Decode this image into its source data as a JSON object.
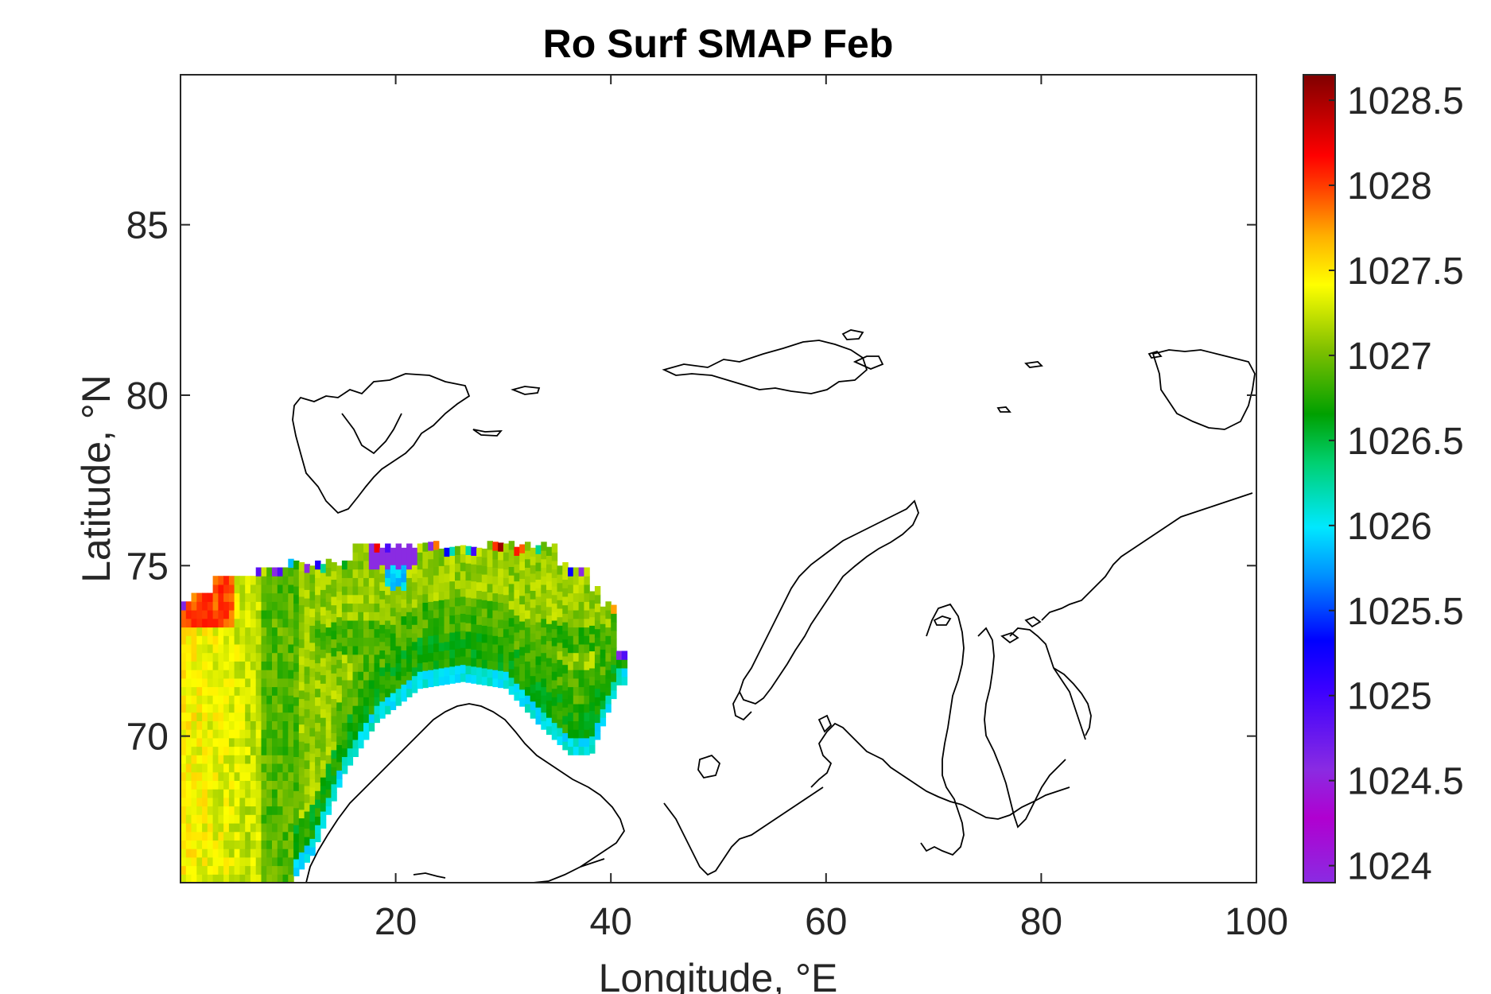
{
  "chart_data": {
    "type": "heatmap",
    "title": "Ro Surf SMAP Feb",
    "xlabel": "Longitude, °E",
    "ylabel": "Latitude, °N",
    "xlim": [
      0,
      100
    ],
    "ylim": [
      65.7,
      89.4
    ],
    "xticks": [
      20,
      40,
      60,
      80,
      100
    ],
    "xtick_labels": [
      "20",
      "40",
      "60",
      "80",
      "100"
    ],
    "yticks": [
      70,
      75,
      80,
      85
    ],
    "ytick_labels": [
      "70",
      "75",
      "80",
      "85"
    ],
    "grid": false,
    "colorbar": {
      "range": [
        1023.9,
        1028.65
      ],
      "ticks": [
        1024,
        1024.5,
        1025,
        1025.5,
        1026,
        1026.5,
        1027,
        1027.5,
        1028,
        1028.5
      ],
      "tick_labels": [
        "1024",
        "1024.5",
        "1025",
        "1025.5",
        "1026",
        "1026.5",
        "1027",
        "1027.5",
        "1028",
        "1028.5"
      ],
      "colormap": "jet-like (violet → blue → cyan → green → yellow → orange → red → dark red)",
      "position": "right"
    },
    "field": {
      "description_rows": [
        {
          "lat": 75.4,
          "lon_range": [
            16,
            28
          ],
          "value_mean": 1027.2
        },
        {
          "lat": 75.0,
          "lon_range": [
            19,
            22
          ],
          "value_mean": 1024.2
        },
        {
          "lat": 74.5,
          "lon_range": [
            1,
            39
          ],
          "value_mean": 1027.3
        },
        {
          "lat": 73.5,
          "lon_range": [
            0,
            6
          ],
          "value_mean": 1028.0
        },
        {
          "lat": 73.0,
          "lon_range": [
            0,
            41
          ],
          "value_mean": 1027.2
        },
        {
          "lat": 72.0,
          "lon_range": [
            0,
            41
          ],
          "value_mean": 1026.9
        },
        {
          "lat": 71.5,
          "lon_range": [
            18,
            34
          ],
          "value_mean": 1026.1
        },
        {
          "lat": 71.0,
          "lon_range": [
            0,
            41
          ],
          "value_mean": 1027.1
        },
        {
          "lat": 70.0,
          "lon_range": [
            0,
            40
          ],
          "value_mean": 1026.9
        },
        {
          "lat": 68.0,
          "lon_range": [
            0,
            12
          ],
          "value_mean": 1027.0
        },
        {
          "lat": 67.5,
          "lon_range": [
            10,
            12
          ],
          "value_mean": 1026.1
        },
        {
          "lat": 66.0,
          "lon_range": [
            0,
            11
          ],
          "value_mean": 1026.8
        }
      ],
      "min_value": 1024.0,
      "max_value": 1028.3
    },
    "coastlines": true
  }
}
